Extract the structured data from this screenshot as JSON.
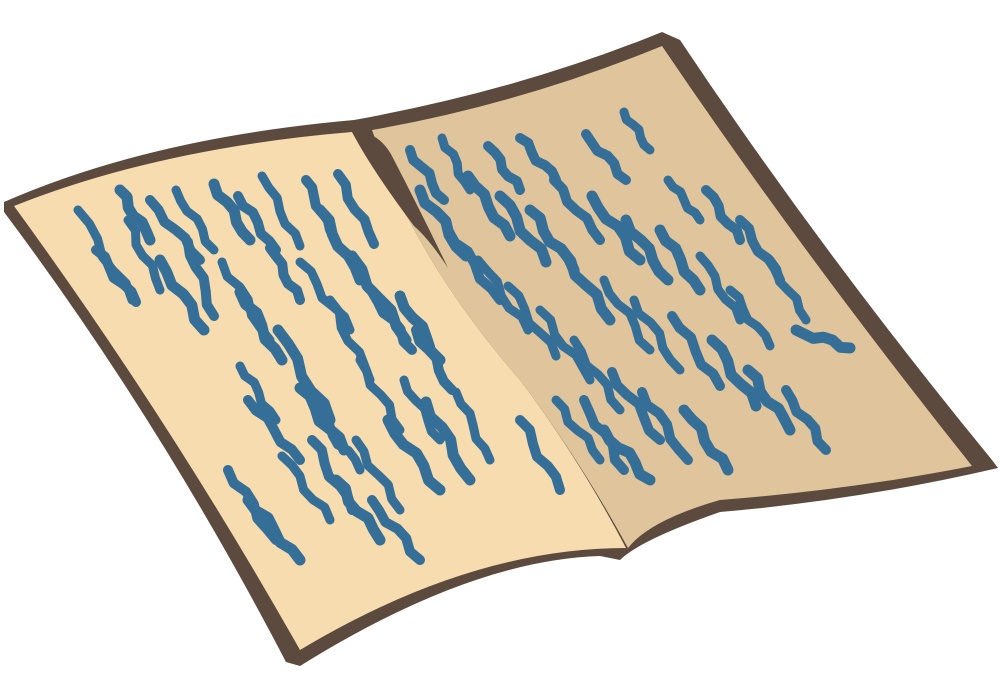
{
  "illustration": {
    "subject": "open-book-clipart",
    "colors": {
      "background": "#ffffff",
      "outline": "#5b4a3d",
      "left_page": "#f7dcb0",
      "right_page": "#e0c59c",
      "gutter_shadow": "#d9bf95",
      "scribble_ink": "#356f97"
    }
  }
}
